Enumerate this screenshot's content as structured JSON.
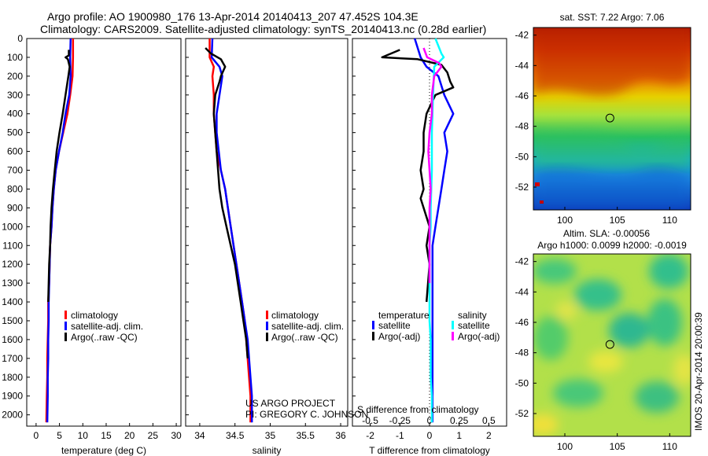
{
  "header": {
    "line1": "Argo profile: AO 1900980_176 13-Apr-2014 20140413_207 47.452S 104.3E",
    "line2": "Climatology: CARS2009. Satellite-adjusted climatology: synTS_20140413.nc (0.28d earlier)"
  },
  "colors": {
    "climatology": "#ff0000",
    "satellite": "#0000ff",
    "argo": "#000000",
    "satellite_s": "#00ffff",
    "argo_s": "#ff00ff"
  },
  "depth_axis": {
    "ticks": [
      0,
      100,
      200,
      300,
      400,
      500,
      600,
      700,
      800,
      900,
      1000,
      1100,
      1200,
      1300,
      1400,
      1500,
      1600,
      1700,
      1800,
      1900,
      2000
    ],
    "range": [
      0,
      2060
    ],
    "reversed": true
  },
  "credit": {
    "line1": "US ARGO PROJECT",
    "line2": "PI: GREGORY C. JOHNSON"
  },
  "imos_label": "IMOS 20-Apr-2014 20:00:39",
  "chart_data": [
    {
      "type": "line",
      "id": "temperature",
      "xlabel": "temperature (deg C)",
      "ylabel": "",
      "xlim": [
        -2,
        31
      ],
      "xticks": [
        0,
        5,
        10,
        15,
        20,
        25,
        30
      ],
      "xtick_labels": [
        "0",
        "5",
        "10",
        "15",
        "20",
        "25",
        "30"
      ],
      "legend": {
        "placement": "lower-center",
        "items": [
          "climatology",
          "satellite-adj. clim.",
          "Argo(..raw -QC)"
        ]
      },
      "series": [
        {
          "name": "climatology",
          "color": "#ff0000",
          "x": [
            7.9,
            7.9,
            7.8,
            7.3,
            6.7,
            5.8,
            4.9,
            4.2,
            3.8,
            3.5,
            3.3,
            3.0,
            2.9,
            2.8,
            2.6,
            2.6,
            2.5,
            2.4,
            2.4,
            2.3,
            2.2
          ],
          "y": [
            0,
            100,
            200,
            300,
            400,
            500,
            600,
            700,
            800,
            900,
            1000,
            1100,
            1200,
            1300,
            1400,
            1500,
            1600,
            1700,
            1800,
            1900,
            2040
          ]
        },
        {
          "name": "satellite-adj. clim.",
          "color": "#0000ff",
          "x": [
            7.4,
            7.3,
            7.4,
            7.1,
            6.3,
            5.7,
            4.9,
            4.2,
            3.8,
            3.5,
            3.3,
            3.0,
            2.9,
            2.8,
            2.7,
            2.7,
            2.6,
            2.6,
            2.5,
            2.5,
            2.4
          ],
          "y": [
            0,
            100,
            200,
            300,
            400,
            500,
            600,
            700,
            800,
            900,
            1000,
            1100,
            1200,
            1300,
            1400,
            1500,
            1600,
            1700,
            1800,
            1900,
            2040
          ]
        },
        {
          "name": "Argo(..raw -QC)",
          "color": "#000000",
          "x": [
            7.0,
            7.0,
            6.3,
            6.8,
            7.2,
            6.9,
            6.6,
            6.3,
            5.7,
            5.0,
            4.4,
            4.0,
            3.6,
            3.3,
            3.1,
            3.0,
            2.8,
            2.7,
            2.6
          ],
          "y": [
            60,
            90,
            100,
            110,
            150,
            200,
            250,
            300,
            400,
            500,
            600,
            700,
            800,
            900,
            1000,
            1100,
            1200,
            1300,
            1400
          ]
        }
      ]
    },
    {
      "type": "line",
      "id": "salinity",
      "xlabel": "salinity",
      "ylabel": "",
      "xlim": [
        33.8,
        36.1
      ],
      "xticks": [
        34,
        34.5,
        35,
        35.5,
        36
      ],
      "xtick_labels": [
        "34",
        "34.5",
        "35",
        "35.5",
        "36"
      ],
      "legend": {
        "placement": "lower-right",
        "items": [
          "climatology",
          "satellite-adj. clim.",
          "Argo(..raw -QC)"
        ]
      },
      "series": [
        {
          "name": "climatology",
          "color": "#ff0000",
          "x": [
            34.14,
            34.14,
            34.2,
            34.18,
            34.2,
            34.2,
            34.22,
            34.24,
            34.3,
            34.36,
            34.4,
            34.44,
            34.48,
            34.52,
            34.56,
            34.6,
            34.64,
            34.66,
            34.68,
            34.7,
            34.72,
            34.72
          ],
          "y": [
            0,
            100,
            150,
            200,
            300,
            400,
            500,
            600,
            700,
            800,
            900,
            1000,
            1100,
            1200,
            1300,
            1400,
            1500,
            1600,
            1700,
            1800,
            1900,
            2040
          ]
        },
        {
          "name": "satellite-adj. clim.",
          "color": "#0000ff",
          "x": [
            34.18,
            34.17,
            34.28,
            34.32,
            34.28,
            34.24,
            34.24,
            34.27,
            34.3,
            34.36,
            34.4,
            34.44,
            34.48,
            34.52,
            34.56,
            34.6,
            34.64,
            34.68,
            34.7,
            34.72,
            34.74,
            34.74
          ],
          "y": [
            0,
            100,
            150,
            200,
            300,
            400,
            500,
            600,
            700,
            800,
            900,
            1000,
            1100,
            1200,
            1300,
            1400,
            1500,
            1600,
            1700,
            1800,
            1900,
            2040
          ]
        },
        {
          "name": "Argo(..raw -QC)",
          "color": "#000000",
          "x": [
            34.08,
            34.16,
            34.3,
            34.33,
            34.36,
            34.3,
            34.28,
            34.22,
            34.2,
            34.22,
            34.24,
            34.26,
            34.28,
            34.32,
            34.38,
            34.44,
            34.5,
            34.54,
            34.58,
            34.62,
            34.66,
            34.68
          ],
          "y": [
            50,
            80,
            110,
            130,
            150,
            200,
            230,
            300,
            400,
            500,
            600,
            700,
            800,
            900,
            1000,
            1100,
            1200,
            1300,
            1400,
            1500,
            1600,
            1700
          ]
        }
      ]
    },
    {
      "type": "line",
      "id": "differences",
      "xlabel": "T difference from climatology",
      "xlabel_top": "S difference from climatology",
      "xlim_T": [
        -2.6,
        2.6
      ],
      "xticks_T": [
        -2,
        -1,
        0,
        1,
        2
      ],
      "xtick_labels_T": [
        "-2",
        "-1",
        "0",
        "1",
        "2"
      ],
      "xlim_S": [
        -0.65,
        0.65
      ],
      "xticks_S": [
        -0.5,
        -0.25,
        0,
        0.25,
        0.5
      ],
      "xtick_labels_S": [
        "-0.5",
        "-0.25",
        "0",
        "0.25",
        "0.5"
      ],
      "legend": {
        "placement": "lower-center",
        "temperature_heading": "temperature",
        "salinity_heading": "salinity",
        "temperature_items": [
          "satellite",
          "Argo(-adj)"
        ],
        "salinity_items": [
          "satellite",
          "Argo(-adj)"
        ]
      },
      "series": [
        {
          "name": "temperature satellite",
          "color": "#0000ff",
          "axis": "T",
          "x": [
            -0.5,
            -0.3,
            -0.1,
            0.3,
            0.5,
            0.8,
            0.5,
            0.6,
            0.5,
            0.4,
            0.3,
            0.2,
            0.1,
            0.1,
            0.1,
            0.1,
            0.1,
            0.1,
            0.1,
            0.1,
            0.1
          ],
          "y": [
            0,
            100,
            150,
            200,
            300,
            400,
            500,
            600,
            700,
            800,
            900,
            1000,
            1100,
            1200,
            1300,
            1400,
            1500,
            1600,
            1700,
            1800,
            2040
          ]
        },
        {
          "name": "temperature Argo(-adj)",
          "color": "#000000",
          "axis": "T",
          "x": [
            -1.0,
            -1.6,
            -0.4,
            0.4,
            0.6,
            0.7,
            0.8,
            0.2,
            -0.1,
            -0.2,
            -0.2,
            -0.3,
            -0.2,
            -0.3,
            -0.2,
            0.0,
            -0.1,
            0.0,
            -0.1
          ],
          "y": [
            60,
            100,
            110,
            140,
            180,
            230,
            260,
            300,
            400,
            500,
            600,
            700,
            800,
            850,
            900,
            1000,
            1100,
            1200,
            1400
          ]
        },
        {
          "name": "salinity satellite",
          "color": "#00ffff",
          "axis": "S",
          "x": [
            0.05,
            0.1,
            0.12,
            0.04,
            0.03,
            0.02,
            0.02,
            0.01,
            0.01,
            0.0,
            0.0,
            0.0,
            0.0,
            0.0,
            0.01,
            0.01,
            0.01,
            0.02,
            0.02,
            0.02,
            0.02
          ],
          "y": [
            0,
            80,
            100,
            150,
            300,
            500,
            700,
            900,
            1000,
            1100,
            1200,
            1300,
            1400,
            1500,
            1600,
            1700,
            1800,
            1900,
            2000,
            2040,
            2040
          ]
        },
        {
          "name": "salinity Argo(-adj)",
          "color": "#ff00ff",
          "axis": "S",
          "x": [
            -0.05,
            -0.02,
            0.08,
            0.1,
            0.04,
            0.02,
            0.02,
            0.0,
            -0.01,
            0.0,
            0.01,
            0.0,
            0.0,
            0.0,
            0.0,
            0.0
          ],
          "y": [
            50,
            100,
            130,
            150,
            200,
            300,
            400,
            500,
            600,
            700,
            800,
            900,
            1000,
            1100,
            1200,
            1300
          ]
        }
      ]
    },
    {
      "type": "heatmap",
      "id": "sst_map",
      "title": "sat. SST: 7.22 Argo: 7.06",
      "xlim": [
        97,
        112
      ],
      "ylim": [
        -53.5,
        -41.5
      ],
      "xticks": [
        100,
        105,
        110
      ],
      "yticks": [
        -42,
        -44,
        -46,
        -48,
        -50,
        -52
      ],
      "ytick_labels": [
        "-42",
        "-44",
        "-46",
        "-48",
        "-50",
        "-52"
      ],
      "marker": {
        "lon": 104.3,
        "lat": -47.452
      }
    },
    {
      "type": "heatmap",
      "id": "sla_map",
      "title": "Altim. SLA: -0.00056",
      "subtitle": "Argo h1000: 0.0099 h2000: -0.0019",
      "xlim": [
        97,
        112
      ],
      "ylim": [
        -53.5,
        -41.5
      ],
      "xticks": [
        100,
        105,
        110
      ],
      "yticks": [
        -42,
        -44,
        -46,
        -48,
        -50,
        -52
      ],
      "ytick_labels": [
        "-42",
        "-44",
        "-46",
        "-48",
        "-50",
        "-52"
      ],
      "marker": {
        "lon": 104.3,
        "lat": -47.452
      }
    }
  ]
}
